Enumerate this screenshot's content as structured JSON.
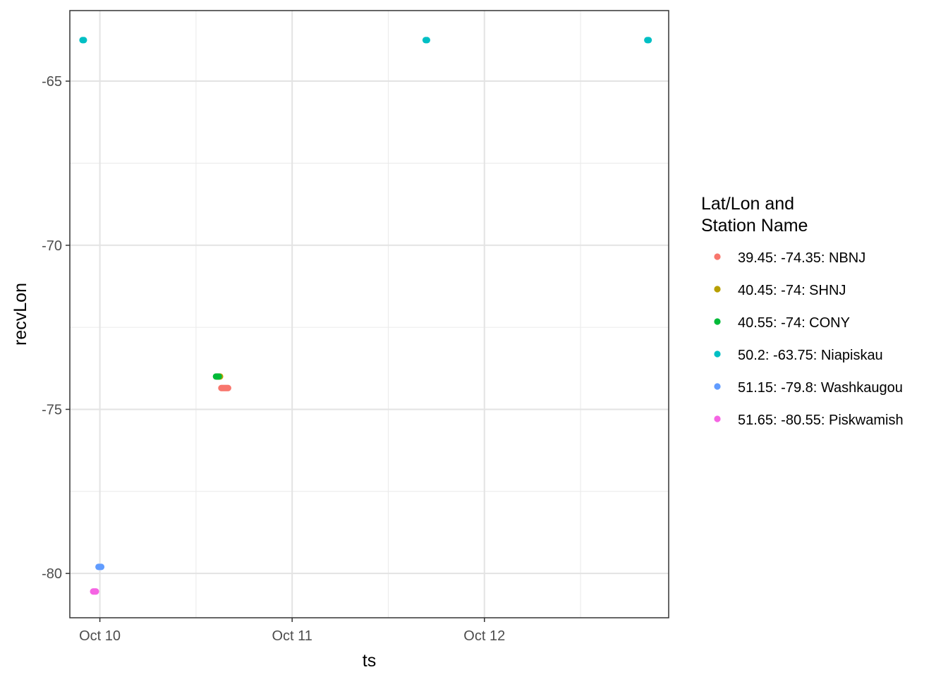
{
  "chart_data": {
    "type": "scatter",
    "title": "",
    "xlabel": "ts",
    "ylabel": "recvLon",
    "xlim": [
      "2023-10-09T20:15",
      "2023-10-12T23:00"
    ],
    "ylim": [
      -81.35,
      -62.85
    ],
    "x_major_ticks": [
      {
        "value": "2023-10-10T00:00",
        "label": "Oct 10"
      },
      {
        "value": "2023-10-11T00:00",
        "label": "Oct 11"
      },
      {
        "value": "2023-10-12T00:00",
        "label": "Oct 12"
      }
    ],
    "x_minor_ticks": [
      "2023-10-10T12:00",
      "2023-10-11T12:00",
      "2023-10-12T12:00"
    ],
    "y_major_ticks": [
      -65,
      -70,
      -75,
      -80
    ],
    "y_minor_ticks": [
      -67.5,
      -72.5,
      -77.5
    ],
    "grid": true,
    "legend": {
      "title_lines": [
        "Lat/Lon and",
        "Station Name"
      ],
      "position": "right"
    },
    "series": [
      {
        "name": "39.45: -74.35: NBNJ",
        "color": "#F8766D",
        "points": [
          {
            "x": "2023-10-10T15:10",
            "y": -74.35
          },
          {
            "x": "2023-10-10T15:20",
            "y": -74.35
          },
          {
            "x": "2023-10-10T15:30",
            "y": -74.35
          },
          {
            "x": "2023-10-10T15:40",
            "y": -74.35
          },
          {
            "x": "2023-10-10T15:50",
            "y": -74.35
          },
          {
            "x": "2023-10-10T16:00",
            "y": -74.35
          }
        ]
      },
      {
        "name": "40.45: -74: SHNJ",
        "color": "#B79F00",
        "points": [
          {
            "x": "2023-10-10T14:40",
            "y": -74.0
          },
          {
            "x": "2023-10-10T14:50",
            "y": -74.0
          },
          {
            "x": "2023-10-10T15:00",
            "y": -74.0
          }
        ]
      },
      {
        "name": "40.55: -74: CONY",
        "color": "#00BA38",
        "points": [
          {
            "x": "2023-10-10T14:30",
            "y": -74.0
          },
          {
            "x": "2023-10-10T14:40",
            "y": -74.0
          },
          {
            "x": "2023-10-10T14:50",
            "y": -74.0
          }
        ]
      },
      {
        "name": "50.2: -63.75: Niapiskau",
        "color": "#00BFC4",
        "points": [
          {
            "x": "2023-10-09T21:50",
            "y": -63.75
          },
          {
            "x": "2023-10-09T22:00",
            "y": -63.75
          },
          {
            "x": "2023-10-11T16:40",
            "y": -63.75
          },
          {
            "x": "2023-10-11T16:50",
            "y": -63.75
          },
          {
            "x": "2023-10-12T20:20",
            "y": -63.75
          },
          {
            "x": "2023-10-12T20:30",
            "y": -63.75
          }
        ]
      },
      {
        "name": "51.15: -79.8: Washkaugou",
        "color": "#619CFF",
        "points": [
          {
            "x": "2023-10-09T23:50",
            "y": -79.8
          },
          {
            "x": "2023-10-10T00:00",
            "y": -79.8
          },
          {
            "x": "2023-10-10T00:10",
            "y": -79.8
          }
        ]
      },
      {
        "name": "51.65: -80.55: Piskwamish",
        "color": "#F564E3",
        "points": [
          {
            "x": "2023-10-09T23:10",
            "y": -80.55
          },
          {
            "x": "2023-10-09T23:20",
            "y": -80.55
          },
          {
            "x": "2023-10-09T23:30",
            "y": -80.55
          }
        ]
      }
    ]
  }
}
